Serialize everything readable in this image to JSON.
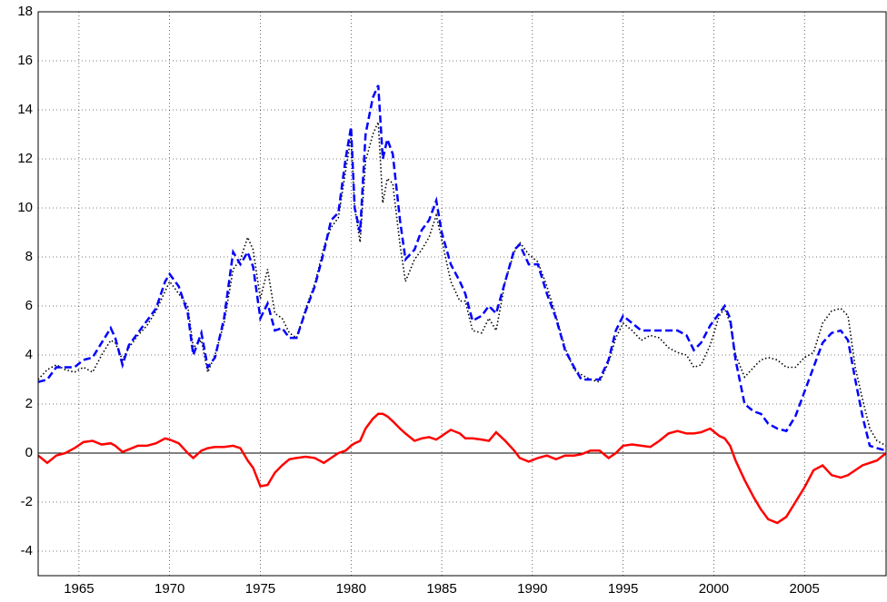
{
  "chart_data": {
    "type": "line",
    "x": [
      1962.75,
      1963.25,
      1963.75,
      1964.25,
      1964.75,
      1965.25,
      1965.75,
      1966.25,
      1966.75,
      1967.0,
      1967.4,
      1967.75,
      1968.25,
      1968.75,
      1969.25,
      1969.75,
      1970.0,
      1970.5,
      1971.0,
      1971.3,
      1971.75,
      1972.1,
      1972.5,
      1973.0,
      1973.5,
      1973.9,
      1974.3,
      1974.6,
      1975.0,
      1975.4,
      1975.8,
      1976.2,
      1976.6,
      1977.0,
      1977.5,
      1978.0,
      1978.5,
      1978.9,
      1979.3,
      1979.7,
      1980.0,
      1980.2,
      1980.5,
      1980.8,
      1981.2,
      1981.5,
      1981.75,
      1982.0,
      1982.3,
      1982.7,
      1983.0,
      1983.5,
      1983.9,
      1984.3,
      1984.7,
      1985.0,
      1985.5,
      1986.0,
      1986.3,
      1986.7,
      1987.2,
      1987.6,
      1988.0,
      1988.5,
      1989.0,
      1989.3,
      1989.8,
      1990.3,
      1990.8,
      1991.3,
      1991.8,
      1992.3,
      1992.7,
      1993.2,
      1993.7,
      1994.2,
      1994.6,
      1995.0,
      1995.5,
      1996.0,
      1996.5,
      1997.0,
      1997.5,
      1998.0,
      1998.5,
      1998.9,
      1999.3,
      1999.8,
      2000.3,
      2000.6,
      2000.9,
      2001.2,
      2001.7,
      2002.2,
      2002.6,
      2003.0,
      2003.5,
      2004.0,
      2004.5,
      2005.0,
      2005.5,
      2006.0,
      2006.5,
      2007.0,
      2007.4,
      2007.8,
      2008.2,
      2008.6,
      2009.0,
      2009.5
    ],
    "series": [
      {
        "color": "#000000",
        "style": "dotted",
        "values": [
          3.0,
          3.4,
          3.6,
          3.4,
          3.3,
          3.5,
          3.3,
          4.0,
          4.6,
          4.5,
          3.8,
          4.3,
          4.8,
          5.2,
          5.8,
          6.6,
          7.0,
          6.5,
          6.0,
          4.3,
          4.6,
          3.3,
          4.0,
          5.3,
          7.5,
          7.9,
          8.8,
          8.3,
          6.3,
          7.5,
          5.7,
          5.5,
          4.9,
          4.7,
          5.9,
          6.9,
          8.4,
          9.2,
          9.6,
          11.5,
          12.9,
          10.0,
          8.6,
          11.9,
          13.0,
          13.5,
          10.2,
          11.2,
          11.0,
          8.5,
          7.0,
          7.9,
          8.3,
          8.8,
          9.7,
          8.7,
          7.0,
          6.2,
          6.2,
          5.0,
          4.9,
          5.5,
          5.0,
          7.0,
          8.2,
          8.6,
          8.1,
          7.8,
          6.8,
          5.6,
          4.3,
          3.4,
          3.2,
          3.0,
          2.9,
          3.7,
          4.7,
          5.3,
          5.0,
          4.6,
          4.8,
          4.7,
          4.3,
          4.1,
          4.0,
          3.5,
          3.6,
          4.4,
          5.6,
          5.9,
          5.3,
          4.0,
          3.1,
          3.5,
          3.8,
          3.9,
          3.8,
          3.5,
          3.5,
          3.9,
          4.1,
          5.3,
          5.8,
          5.9,
          5.6,
          3.5,
          2.2,
          1.0,
          0.5,
          0.3
        ]
      },
      {
        "color": "#0000ff",
        "style": "dashed",
        "values": [
          2.9,
          3.0,
          3.5,
          3.5,
          3.5,
          3.8,
          3.9,
          4.5,
          5.1,
          4.7,
          3.6,
          4.4,
          4.9,
          5.4,
          5.9,
          7.0,
          7.3,
          6.8,
          5.7,
          4.0,
          4.9,
          3.5,
          3.9,
          5.5,
          8.2,
          7.7,
          8.2,
          7.6,
          5.5,
          6.1,
          5.0,
          5.1,
          4.7,
          4.7,
          5.8,
          6.8,
          8.2,
          9.5,
          9.8,
          12.0,
          13.3,
          10.0,
          9.0,
          13.0,
          14.5,
          15.0,
          12.0,
          12.8,
          12.2,
          9.5,
          7.9,
          8.3,
          9.1,
          9.5,
          10.3,
          9.0,
          7.7,
          7.0,
          6.5,
          5.4,
          5.6,
          6.0,
          5.7,
          7.0,
          8.3,
          8.5,
          7.7,
          7.7,
          6.5,
          5.5,
          4.2,
          3.5,
          3.0,
          3.0,
          3.0,
          3.8,
          5.0,
          5.6,
          5.3,
          5.0,
          5.0,
          5.0,
          5.0,
          5.0,
          4.8,
          4.2,
          4.5,
          5.2,
          5.7,
          6.0,
          5.5,
          3.8,
          2.0,
          1.7,
          1.6,
          1.2,
          1.0,
          0.9,
          1.5,
          2.5,
          3.5,
          4.5,
          4.9,
          5.0,
          4.6,
          3.0,
          1.5,
          0.3,
          0.2,
          0.1
        ]
      },
      {
        "color": "#ff0000",
        "style": "solid",
        "values": [
          -0.1,
          -0.4,
          -0.1,
          0.0,
          0.2,
          0.45,
          0.5,
          0.35,
          0.4,
          0.3,
          0.05,
          0.15,
          0.3,
          0.3,
          0.4,
          0.6,
          0.55,
          0.4,
          0.0,
          -0.2,
          0.1,
          0.2,
          0.25,
          0.25,
          0.3,
          0.2,
          -0.3,
          -0.6,
          -1.35,
          -1.3,
          -0.8,
          -0.5,
          -0.25,
          -0.2,
          -0.15,
          -0.2,
          -0.4,
          -0.2,
          0.0,
          0.1,
          0.3,
          0.4,
          0.5,
          1.0,
          1.4,
          1.6,
          1.6,
          1.5,
          1.3,
          1.0,
          0.8,
          0.5,
          0.6,
          0.65,
          0.55,
          0.7,
          0.95,
          0.8,
          0.6,
          0.6,
          0.55,
          0.5,
          0.85,
          0.5,
          0.1,
          -0.2,
          -0.35,
          -0.2,
          -0.1,
          -0.25,
          -0.1,
          -0.1,
          -0.05,
          0.1,
          0.1,
          -0.2,
          0.0,
          0.3,
          0.35,
          0.3,
          0.25,
          0.5,
          0.8,
          0.9,
          0.8,
          0.8,
          0.85,
          1.0,
          0.7,
          0.6,
          0.3,
          -0.3,
          -1.1,
          -1.8,
          -2.3,
          -2.7,
          -2.85,
          -2.6,
          -2.0,
          -1.4,
          -0.7,
          -0.5,
          -0.9,
          -1.0,
          -0.9,
          -0.7,
          -0.5,
          -0.4,
          -0.3,
          0.0
        ]
      }
    ],
    "hlines": [
      0
    ],
    "xlim": [
      1962.75,
      2009.5
    ],
    "xticks": [
      1965,
      1970,
      1975,
      1980,
      1985,
      1990,
      1995,
      2000,
      2005
    ],
    "ylim": [
      -5,
      18
    ],
    "yticks": [
      -4,
      -2,
      0,
      2,
      4,
      6,
      8,
      10,
      12,
      14,
      16,
      18
    ],
    "grid": true
  }
}
